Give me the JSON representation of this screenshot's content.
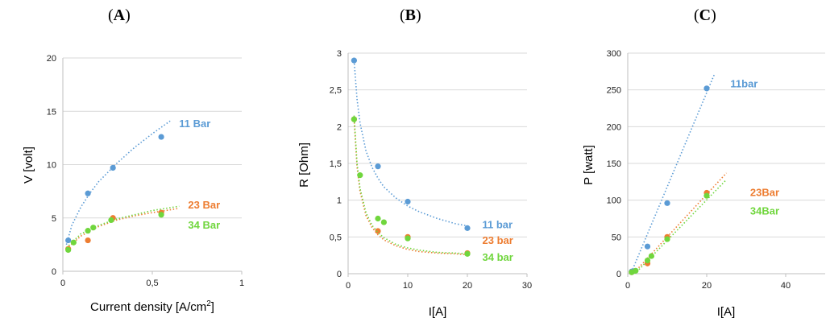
{
  "chart_data": [
    {
      "id": "A",
      "type": "scatter",
      "title": "A",
      "xlabel": "Current density [A/cm",
      "xlabel_sup": "2",
      "xlabel_end": "]",
      "ylabel": "V [volt]",
      "xlim": [
        0,
        1
      ],
      "ylim": [
        0,
        20
      ],
      "xticks": [
        0,
        0.5,
        1
      ],
      "xtick_labels": [
        "0",
        "0,5",
        "1"
      ],
      "yticks": [
        0,
        5,
        10,
        15,
        20
      ],
      "ytick_labels": [
        "0",
        "5",
        "10",
        "15",
        "20"
      ],
      "grid": true,
      "series": [
        {
          "name": "11 Bar",
          "color": "#5B9BD5",
          "x": [
            0.03,
            0.14,
            0.28,
            0.55
          ],
          "y": [
            2.9,
            7.3,
            9.7,
            12.6
          ],
          "trend": {
            "x": [
              0.02,
              0.05,
              0.1,
              0.15,
              0.2,
              0.3,
              0.4,
              0.5,
              0.6
            ],
            "y": [
              2.5,
              4.3,
              6.0,
              7.3,
              8.4,
              10.1,
              11.6,
              12.9,
              14.1
            ]
          },
          "label_x": 0.65,
          "label_y": 13.8
        },
        {
          "name": "23 Bar",
          "color": "#ED7D31",
          "x": [
            0.03,
            0.14,
            0.28,
            0.55
          ],
          "y": [
            2.1,
            2.9,
            5.0,
            5.5
          ],
          "trend": {
            "x": [
              0.02,
              0.1,
              0.2,
              0.3,
              0.4,
              0.5,
              0.65
            ],
            "y": [
              2.1,
              3.3,
              4.2,
              4.8,
              5.2,
              5.5,
              5.9
            ]
          },
          "label_x": 0.7,
          "label_y": 6.2
        },
        {
          "name": "34 Bar",
          "color": "#70D63D",
          "x": [
            0.03,
            0.06,
            0.14,
            0.17,
            0.27,
            0.55
          ],
          "y": [
            2.0,
            2.7,
            3.8,
            4.1,
            4.8,
            5.3
          ],
          "trend": {
            "x": [
              0.02,
              0.1,
              0.2,
              0.3,
              0.4,
              0.5,
              0.65
            ],
            "y": [
              2.2,
              3.5,
              4.3,
              4.9,
              5.3,
              5.7,
              6.1
            ]
          },
          "label_x": 0.7,
          "label_y": 4.3
        }
      ]
    },
    {
      "id": "B",
      "type": "scatter",
      "title": "B",
      "xlabel": "I[A]",
      "ylabel": "R [Ohm]",
      "xlim": [
        0,
        30
      ],
      "ylim": [
        0,
        3
      ],
      "xticks": [
        0,
        10,
        20,
        30
      ],
      "xtick_labels": [
        "0",
        "10",
        "20",
        "30"
      ],
      "yticks": [
        0,
        0.5,
        1,
        1.5,
        2,
        2.5,
        3
      ],
      "ytick_labels": [
        "0",
        "0,5",
        "1",
        "1,5",
        "2",
        "2,5",
        "3"
      ],
      "grid": true,
      "series": [
        {
          "name": "11 bar",
          "color": "#5B9BD5",
          "x": [
            1,
            5,
            10,
            20
          ],
          "y": [
            2.9,
            1.46,
            0.98,
            0.62
          ],
          "trend": {
            "x": [
              1,
              1.5,
              2,
              3,
              4,
              5,
              6,
              8,
              10,
              12,
              15,
              18,
              20
            ],
            "y": [
              2.9,
              2.37,
              2.05,
              1.67,
              1.45,
              1.3,
              1.18,
              1.03,
              0.92,
              0.84,
              0.75,
              0.68,
              0.65
            ]
          },
          "label_x": 22.5,
          "label_y": 0.66
        },
        {
          "name": "23 bar",
          "color": "#ED7D31",
          "x": [
            1,
            5,
            10,
            20
          ],
          "y": [
            2.1,
            0.58,
            0.5,
            0.28
          ],
          "trend": {
            "x": [
              1,
              1.5,
              2,
              3,
              4,
              5,
              6,
              8,
              10,
              12,
              15,
              18,
              20
            ],
            "y": [
              2.1,
              1.45,
              1.12,
              0.79,
              0.63,
              0.53,
              0.46,
              0.38,
              0.33,
              0.3,
              0.28,
              0.27,
              0.26
            ]
          },
          "label_x": 22.5,
          "label_y": 0.45
        },
        {
          "name": "34 bar",
          "color": "#70D63D",
          "x": [
            1,
            2,
            5,
            6,
            10,
            20
          ],
          "y": [
            2.1,
            1.34,
            0.75,
            0.7,
            0.48,
            0.27
          ],
          "trend": {
            "x": [
              1,
              1.5,
              2,
              3,
              4,
              5,
              6,
              8,
              10,
              12,
              15,
              18,
              20
            ],
            "y": [
              2.15,
              1.5,
              1.16,
              0.83,
              0.66,
              0.56,
              0.49,
              0.4,
              0.35,
              0.32,
              0.29,
              0.28,
              0.27
            ]
          },
          "label_x": 22.5,
          "label_y": 0.22
        }
      ]
    },
    {
      "id": "C",
      "type": "scatter",
      "title": "C",
      "xlabel": "I[A]",
      "ylabel": "P [watt]",
      "xlim": [
        0,
        50
      ],
      "ylim": [
        0,
        300
      ],
      "xticks": [
        0,
        20,
        40
      ],
      "xtick_labels": [
        "0",
        "20",
        "40"
      ],
      "yticks": [
        0,
        50,
        100,
        150,
        200,
        250,
        300
      ],
      "ytick_labels": [
        "0",
        "50",
        "100",
        "150",
        "200",
        "250",
        "300"
      ],
      "grid": true,
      "series": [
        {
          "name": "11bar",
          "color": "#5B9BD5",
          "x": [
            1,
            5,
            10,
            20
          ],
          "y": [
            3,
            37,
            96,
            252
          ],
          "trend": {
            "x": [
              0,
              22
            ],
            "y": [
              -10,
              272
            ]
          },
          "label_x": 26,
          "label_y": 258
        },
        {
          "name": "23Bar",
          "color": "#ED7D31",
          "x": [
            1,
            5,
            10,
            20
          ],
          "y": [
            2,
            14,
            50,
            110
          ],
          "trend": {
            "x": [
              0,
              25
            ],
            "y": [
              -8,
              137
            ]
          },
          "label_x": 31,
          "label_y": 110
        },
        {
          "name": "34Bar",
          "color": "#70D63D",
          "x": [
            1,
            2,
            5,
            6,
            10,
            20
          ],
          "y": [
            2,
            4,
            18,
            24,
            47,
            106
          ],
          "trend": {
            "x": [
              0,
              25
            ],
            "y": [
              -10,
              128
            ]
          },
          "label_x": 31,
          "label_y": 85
        }
      ]
    }
  ]
}
